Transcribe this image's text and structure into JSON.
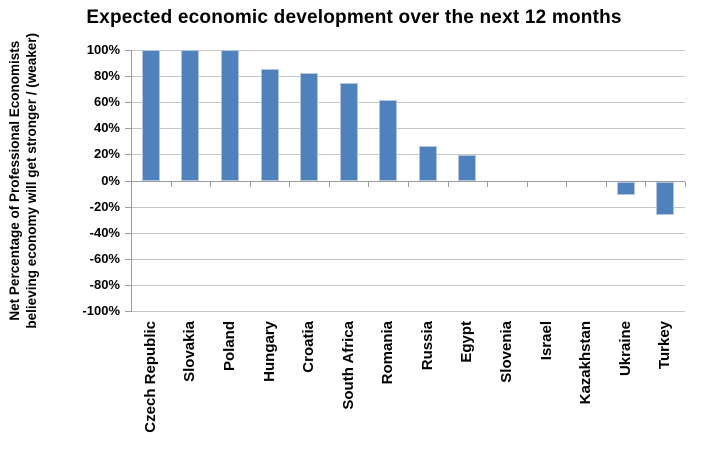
{
  "chart_data": {
    "type": "bar",
    "title": "Expected economic development over the next 12 months",
    "ylabel_line1": "Net Percentage of Professional Economists",
    "ylabel_line2": "believing economy will get stronger / (weaker)",
    "xlabel": "",
    "categories": [
      "Czech Republic",
      "Slovakia",
      "Poland",
      "Hungary",
      "Croatia",
      "South Africa",
      "Romania",
      "Russia",
      "Egypt",
      "Slovenia",
      "Israel",
      "Kazakhstan",
      "Ukraine",
      "Turkey"
    ],
    "values": [
      100,
      100,
      100,
      86,
      83,
      75,
      62,
      27,
      20,
      0,
      0,
      0,
      -10,
      -25
    ],
    "y_tick_labels": [
      "100%",
      "80%",
      "60%",
      "40%",
      "20%",
      "0%",
      "-20%",
      "-40%",
      "-60%",
      "-80%",
      "-100%"
    ],
    "ylim": [
      -100,
      100
    ],
    "y_tick_step": 20,
    "grid": true,
    "legend": "none",
    "colors": {
      "bar": "#4F81BD",
      "bar_edge": "#B3C6E0",
      "gridline": "#C6C6C6",
      "axis": "#9B9B9B",
      "text": "#000000",
      "background": "#FFFFFF"
    }
  }
}
